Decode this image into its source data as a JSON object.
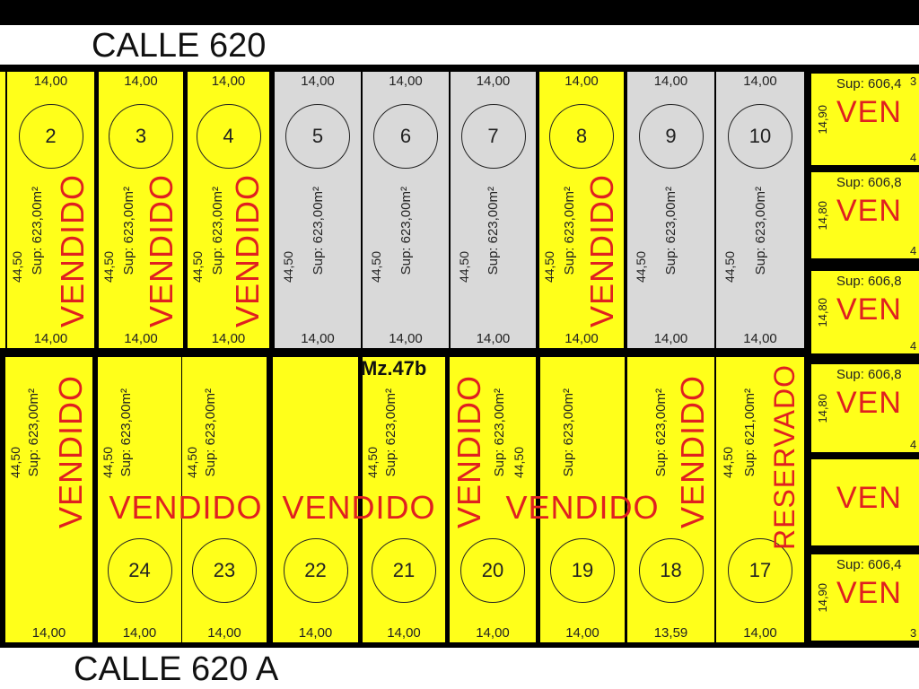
{
  "streets": {
    "top": "CALLE 620",
    "bottom": "CALLE 620 A"
  },
  "block_label": "Mz.47b",
  "colors": {
    "available": "#d9d9d9",
    "sold": "#ffff1a",
    "stamp": "#e02020",
    "border": "#000000"
  },
  "top_row": [
    {
      "number": "2",
      "front": "14,00",
      "back": "14,00",
      "side": "44,50",
      "sup": "Sup: 623,00m²",
      "status": "sold",
      "stamp": "VENDIDO"
    },
    {
      "number": "3",
      "front": "14,00",
      "back": "14,00",
      "side": "44,50",
      "sup": "Sup: 623,00m²",
      "status": "sold",
      "stamp": "VENDIDO"
    },
    {
      "number": "4",
      "front": "14,00",
      "back": "14,00",
      "side": "44,50",
      "sup": "Sup: 623,00m²",
      "status": "sold",
      "stamp": "VENDIDO"
    },
    {
      "number": "5",
      "front": "14,00",
      "back": "14,00",
      "side": "44,50",
      "sup": "Sup: 623,00m²",
      "status": "available",
      "stamp": ""
    },
    {
      "number": "6",
      "front": "14,00",
      "back": "14,00",
      "side": "44,50",
      "sup": "Sup: 623,00m²",
      "status": "available",
      "stamp": ""
    },
    {
      "number": "7",
      "front": "14,00",
      "back": "14,00",
      "side": "44,50",
      "sup": "Sup: 623,00m²",
      "status": "available",
      "stamp": ""
    },
    {
      "number": "8",
      "front": "14,00",
      "back": "14,00",
      "side": "44,50",
      "sup": "Sup: 623,00m²",
      "status": "sold",
      "stamp": "VENDIDO"
    },
    {
      "number": "9",
      "front": "14,00",
      "back": "14,00",
      "side": "44,50",
      "sup": "Sup: 623,00m²",
      "status": "available",
      "stamp": ""
    },
    {
      "number": "10",
      "front": "14,00",
      "back": "14,00",
      "side": "44,50",
      "sup": "Sup: 623,00m²",
      "status": "available",
      "stamp": ""
    }
  ],
  "bottom_row": [
    {
      "number": "",
      "front": "14,00",
      "side": "44,50",
      "sup": "Sup: 623,00m²",
      "status": "sold",
      "stamp": "VENDIDO"
    },
    {
      "number": "24",
      "front": "14,00",
      "side": "44,50",
      "sup": "Sup: 623,00m²",
      "status": "sold",
      "stamp": ""
    },
    {
      "number": "23",
      "front": "14,00",
      "side": "44,50",
      "sup": "Sup: 623,00m²",
      "status": "sold",
      "stamp": ""
    },
    {
      "number": "22",
      "front": "14,00",
      "side": "",
      "sup": "",
      "status": "sold",
      "stamp": ""
    },
    {
      "number": "21",
      "front": "14,00",
      "side": "44,50",
      "sup": "Sup: 623,00m²",
      "status": "sold",
      "stamp": ""
    },
    {
      "number": "20",
      "front": "14,00",
      "side": "44,50",
      "sup": "Sup: 623,00m²",
      "status": "sold",
      "stamp": "VENDIDO"
    },
    {
      "number": "19",
      "front": "14,00",
      "side": "",
      "sup": "Sup: 623,00m²",
      "status": "sold",
      "stamp": ""
    },
    {
      "number": "18",
      "front": "13,59",
      "side": "",
      "sup": "Sup: 623,00m²",
      "status": "sold",
      "stamp": "VENDIDO"
    },
    {
      "number": "17",
      "front": "14,00",
      "side": "44,50",
      "sup": "Sup: 621,00m²",
      "status": "reserved",
      "stamp": "RESERVADO"
    }
  ],
  "horizontal_stamps": [
    "VENDIDO",
    "VENDIDO",
    "VENDIDO"
  ],
  "right_column": [
    {
      "side": "14,90",
      "sup": "Sup: 606,4",
      "top": "3",
      "bottom": "4",
      "stamp": "VEN"
    },
    {
      "side": "14,80",
      "sup": "Sup: 606,8",
      "top": "",
      "bottom": "4",
      "stamp": "VEN"
    },
    {
      "side": "14,80",
      "sup": "Sup: 606,8",
      "top": "",
      "bottom": "4",
      "stamp": "VEN"
    },
    {
      "side": "14,80",
      "sup": "Sup: 606,8",
      "top": "",
      "bottom": "4",
      "stamp": "VEN"
    },
    {
      "side": "",
      "sup": "",
      "top": "",
      "bottom": "",
      "stamp": "VEN"
    },
    {
      "side": "14,90",
      "sup": "Sup: 606,4",
      "top": "",
      "bottom": "3",
      "stamp": "VEN"
    }
  ]
}
